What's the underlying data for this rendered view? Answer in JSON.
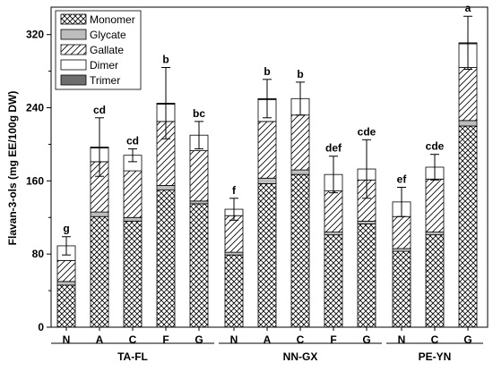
{
  "chart_data": {
    "type": "bar",
    "stacked": true,
    "ylabel": "Flavan-3-ols (mg EE/100g DW)",
    "ylim": [
      0,
      350
    ],
    "yticks": [
      0,
      80,
      160,
      240,
      320
    ],
    "groups": [
      {
        "name": "TA-FL",
        "categories": [
          "N",
          "A",
          "C",
          "F",
          "G"
        ]
      },
      {
        "name": "NN-GX",
        "categories": [
          "N",
          "A",
          "C",
          "F",
          "G"
        ]
      },
      {
        "name": "PE-YN",
        "categories": [
          "N",
          "C",
          "G"
        ]
      }
    ],
    "categories": [
      "N",
      "A",
      "C",
      "F",
      "G",
      "N",
      "A",
      "C",
      "F",
      "G",
      "N",
      "C",
      "G"
    ],
    "series": [
      {
        "name": "Monomer",
        "pattern": "crosshatch",
        "values": [
          46,
          121,
          116,
          150,
          135,
          79,
          157,
          167,
          101,
          113,
          83,
          101,
          220
        ]
      },
      {
        "name": "Glycate",
        "pattern": "lightgray",
        "values": [
          4,
          5,
          4,
          5,
          3,
          3,
          6,
          5,
          3,
          3,
          3,
          3,
          6
        ]
      },
      {
        "name": "Gallate",
        "pattern": "diagonal",
        "values": [
          23,
          55,
          51,
          70,
          55,
          40,
          62,
          60,
          45,
          45,
          35,
          58,
          58
        ]
      },
      {
        "name": "Dimer",
        "pattern": "white",
        "values": [
          16,
          15,
          17,
          19,
          17,
          7,
          24,
          18,
          18,
          12,
          16,
          13,
          26
        ]
      },
      {
        "name": "Trimer",
        "pattern": "darkgray",
        "values": [
          0,
          1,
          0,
          1,
          0,
          0,
          1,
          0,
          0,
          0,
          0,
          0,
          1
        ]
      }
    ],
    "totals": [
      89,
      197,
      188,
      245,
      210,
      129,
      250,
      250,
      167,
      173,
      137,
      175,
      311
    ],
    "errors": [
      10,
      32,
      7,
      39,
      15,
      12,
      21,
      18,
      20,
      32,
      16,
      14,
      29
    ],
    "significance": [
      "g",
      "cd",
      "cd",
      "b",
      "bc",
      "f",
      "b",
      "b",
      "def",
      "cde",
      "ef",
      "cde",
      "a"
    ],
    "legend_position": "top-left",
    "grid": false
  }
}
